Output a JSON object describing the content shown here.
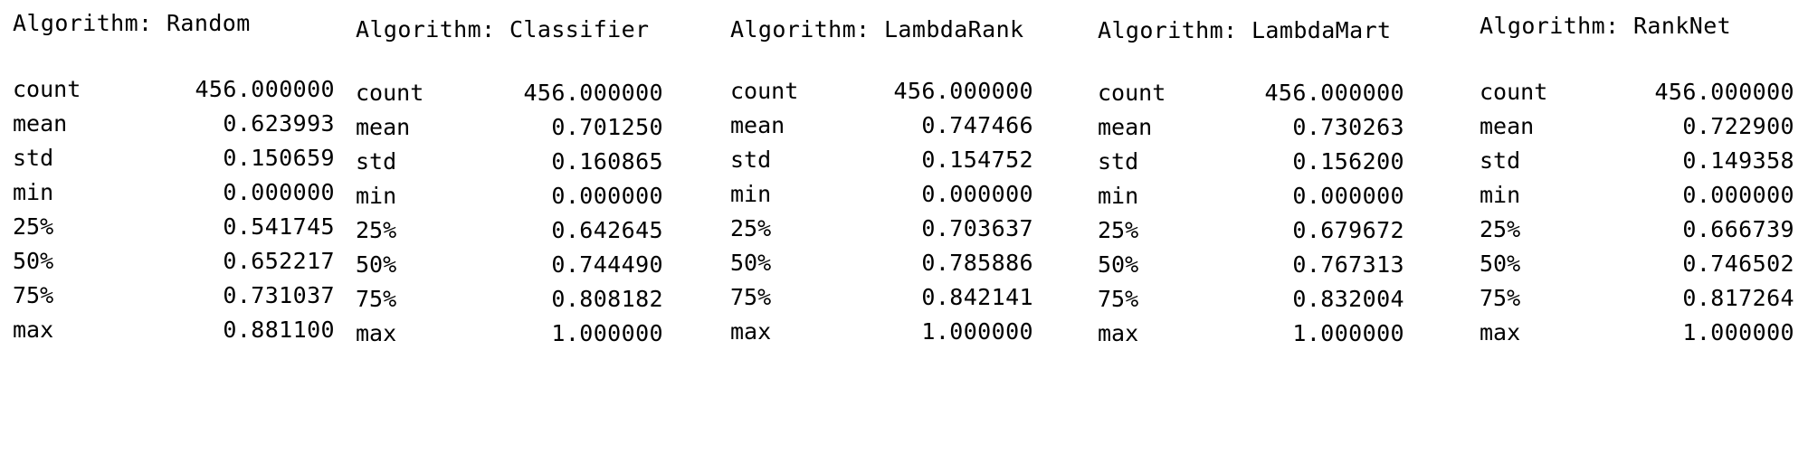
{
  "tables": [
    {
      "title": "Algorithm: Random",
      "rows": [
        {
          "stat": "count",
          "value": "456.000000"
        },
        {
          "stat": "mean",
          "value": "0.623993"
        },
        {
          "stat": "std",
          "value": "0.150659"
        },
        {
          "stat": "min",
          "value": "0.000000"
        },
        {
          "stat": "25%",
          "value": "0.541745"
        },
        {
          "stat": "50%",
          "value": "0.652217"
        },
        {
          "stat": "75%",
          "value": "0.731037"
        },
        {
          "stat": "max",
          "value": "0.881100"
        }
      ]
    },
    {
      "title": "Algorithm: Classifier",
      "rows": [
        {
          "stat": "count",
          "value": "456.000000"
        },
        {
          "stat": "mean",
          "value": "0.701250"
        },
        {
          "stat": "std",
          "value": "0.160865"
        },
        {
          "stat": "min",
          "value": "0.000000"
        },
        {
          "stat": "25%",
          "value": "0.642645"
        },
        {
          "stat": "50%",
          "value": "0.744490"
        },
        {
          "stat": "75%",
          "value": "0.808182"
        },
        {
          "stat": "max",
          "value": "1.000000"
        }
      ]
    },
    {
      "title": "Algorithm: LambdaRank",
      "rows": [
        {
          "stat": "count",
          "value": "456.000000"
        },
        {
          "stat": "mean",
          "value": "0.747466"
        },
        {
          "stat": "std",
          "value": "0.154752"
        },
        {
          "stat": "min",
          "value": "0.000000"
        },
        {
          "stat": "25%",
          "value": "0.703637"
        },
        {
          "stat": "50%",
          "value": "0.785886"
        },
        {
          "stat": "75%",
          "value": "0.842141"
        },
        {
          "stat": "max",
          "value": "1.000000"
        }
      ]
    },
    {
      "title": "Algorithm: LambdaMart",
      "rows": [
        {
          "stat": "count",
          "value": "456.000000"
        },
        {
          "stat": "mean",
          "value": "0.730263"
        },
        {
          "stat": "std",
          "value": "0.156200"
        },
        {
          "stat": "min",
          "value": "0.000000"
        },
        {
          "stat": "25%",
          "value": "0.679672"
        },
        {
          "stat": "50%",
          "value": "0.767313"
        },
        {
          "stat": "75%",
          "value": "0.832004"
        },
        {
          "stat": "max",
          "value": "1.000000"
        }
      ]
    },
    {
      "title": "Algorithm: RankNet",
      "rows": [
        {
          "stat": "count",
          "value": "456.000000"
        },
        {
          "stat": "mean",
          "value": "0.722900"
        },
        {
          "stat": "std",
          "value": "0.149358"
        },
        {
          "stat": "min",
          "value": "0.000000"
        },
        {
          "stat": "25%",
          "value": "0.666739"
        },
        {
          "stat": "50%",
          "value": "0.746502"
        },
        {
          "stat": "75%",
          "value": "0.817264"
        },
        {
          "stat": "max",
          "value": "1.000000"
        }
      ]
    }
  ]
}
